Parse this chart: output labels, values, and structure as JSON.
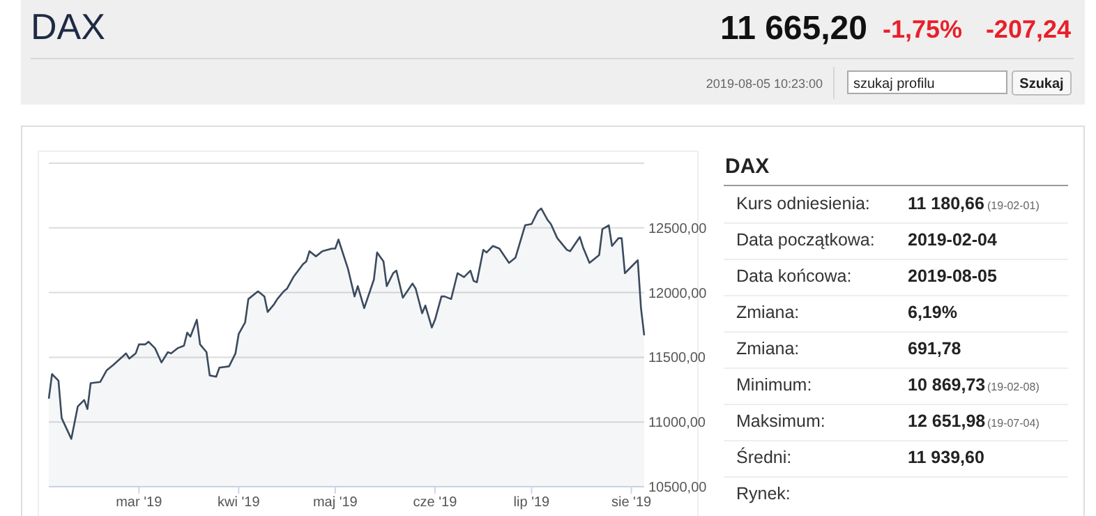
{
  "chart_data": {
    "type": "area",
    "title": "DAX",
    "x": [
      "2019-02-01",
      "2019-02-02",
      "2019-02-04",
      "2019-02-05",
      "2019-02-08",
      "2019-02-10",
      "2019-02-12",
      "2019-02-13",
      "2019-02-14",
      "2019-02-17",
      "2019-02-19",
      "2019-02-21",
      "2019-02-25",
      "2019-02-26",
      "2019-02-28",
      "2019-03-01",
      "2019-03-03",
      "2019-03-04",
      "2019-03-06",
      "2019-03-08",
      "2019-03-10",
      "2019-03-11",
      "2019-03-13",
      "2019-03-15",
      "2019-03-16",
      "2019-03-17",
      "2019-03-19",
      "2019-03-20",
      "2019-03-22",
      "2019-03-23",
      "2019-03-25",
      "2019-03-26",
      "2019-03-29",
      "2019-03-31",
      "2019-04-01",
      "2019-04-03",
      "2019-04-04",
      "2019-04-07",
      "2019-04-09",
      "2019-04-10",
      "2019-04-12",
      "2019-04-13",
      "2019-04-15",
      "2019-04-16",
      "2019-04-18",
      "2019-04-21",
      "2019-04-22",
      "2019-04-23",
      "2019-04-25",
      "2019-04-27",
      "2019-04-30",
      "2019-05-01",
      "2019-05-02",
      "2019-05-05",
      "2019-05-07",
      "2019-05-08",
      "2019-05-10",
      "2019-05-13",
      "2019-05-14",
      "2019-05-16",
      "2019-05-17",
      "2019-05-19",
      "2019-05-20",
      "2019-05-22",
      "2019-05-25",
      "2019-05-26",
      "2019-05-28",
      "2019-05-29",
      "2019-05-31",
      "2019-06-01",
      "2019-06-03",
      "2019-06-04",
      "2019-06-06",
      "2019-06-08",
      "2019-06-10",
      "2019-06-12",
      "2019-06-13",
      "2019-06-14",
      "2019-06-16",
      "2019-06-17",
      "2019-06-19",
      "2019-06-21",
      "2019-06-24",
      "2019-06-26",
      "2019-06-29",
      "2019-07-01",
      "2019-07-03",
      "2019-07-04",
      "2019-07-06",
      "2019-07-07",
      "2019-07-09",
      "2019-07-12",
      "2019-07-13",
      "2019-07-16",
      "2019-07-17",
      "2019-07-19",
      "2019-07-22",
      "2019-07-23",
      "2019-07-25",
      "2019-07-26",
      "2019-07-28",
      "2019-07-29",
      "2019-07-30",
      "2019-08-01",
      "2019-08-03",
      "2019-08-04",
      "2019-08-05"
    ],
    "series": [
      {
        "color": "#3b4a5e",
        "values": [
          11180,
          11370,
          11320,
          11030,
          10870,
          11120,
          11170,
          11100,
          11300,
          11310,
          11400,
          11440,
          11530,
          11490,
          11530,
          11600,
          11600,
          11620,
          11570,
          11460,
          11540,
          11530,
          11570,
          11590,
          11690,
          11660,
          11790,
          11600,
          11540,
          11360,
          11350,
          11420,
          11430,
          11530,
          11680,
          11770,
          11950,
          12010,
          11970,
          11850,
          11910,
          11950,
          12010,
          12030,
          12120,
          12220,
          12240,
          12320,
          12280,
          12320,
          12340,
          12340,
          12410,
          12180,
          11970,
          12050,
          11880,
          12100,
          12310,
          12240,
          12050,
          12150,
          12170,
          11960,
          12070,
          12030,
          11840,
          11900,
          11730,
          11790,
          11970,
          11970,
          11950,
          12150,
          12120,
          12170,
          12090,
          12080,
          12330,
          12310,
          12360,
          12340,
          12230,
          12270,
          12520,
          12530,
          12630,
          12650,
          12560,
          12530,
          12420,
          12330,
          12320,
          12430,
          12350,
          12230,
          12290,
          12490,
          12520,
          12360,
          12420,
          12420,
          12150,
          12200,
          12250,
          11880,
          11670
        ]
      }
    ],
    "xlim": [
      "2019-02-01",
      "2019-08-05"
    ],
    "xticks": [
      {
        "value": "2019-03-01",
        "label": "mar '19"
      },
      {
        "value": "2019-04-01",
        "label": "kwi '19"
      },
      {
        "value": "2019-05-01",
        "label": "maj '19"
      },
      {
        "value": "2019-06-01",
        "label": "cze '19"
      },
      {
        "value": "2019-07-01",
        "label": "lip '19"
      },
      {
        "value": "2019-08-01",
        "label": "sie '19"
      }
    ],
    "ylim": [
      10500,
      13000
    ],
    "yticks": [
      {
        "value": 10500,
        "label": "10500,00"
      },
      {
        "value": 11000,
        "label": "11000,00"
      },
      {
        "value": 11500,
        "label": "11500,00"
      },
      {
        "value": 12000,
        "label": "12000,00"
      },
      {
        "value": 12500,
        "label": "12500,00"
      },
      {
        "value": 13000,
        "label": null
      }
    ],
    "grid": "y",
    "annotations": [
      "11 665,20",
      "-1,75%",
      "-207,24",
      "2019-08-05 10:23:00",
      "szukaj profilu",
      "Szukaj",
      "DAX",
      "Kurs odniesienia:",
      "11 180,66",
      "(19-02-01)",
      "Data początkowa:",
      "2019-02-04",
      "Data końcowa:",
      "2019-08-05",
      "Zmiana:",
      "6,19%",
      "Zmiana:",
      "691,78",
      "Minimum:",
      "10 869,73",
      "(19-02-08)",
      "Maksimum:",
      "12 651,98",
      "(19-07-04)",
      "Średni:",
      "11 939,60",
      "Rynek:"
    ]
  }
}
